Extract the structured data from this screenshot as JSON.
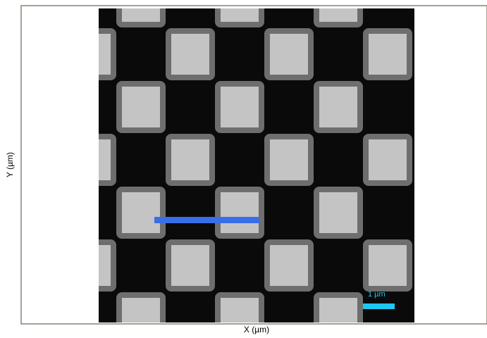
{
  "axes": {
    "x_label": "X (µm)",
    "y_label": "Y (µm)"
  },
  "scale_bar": {
    "label": "1 µm"
  }
}
